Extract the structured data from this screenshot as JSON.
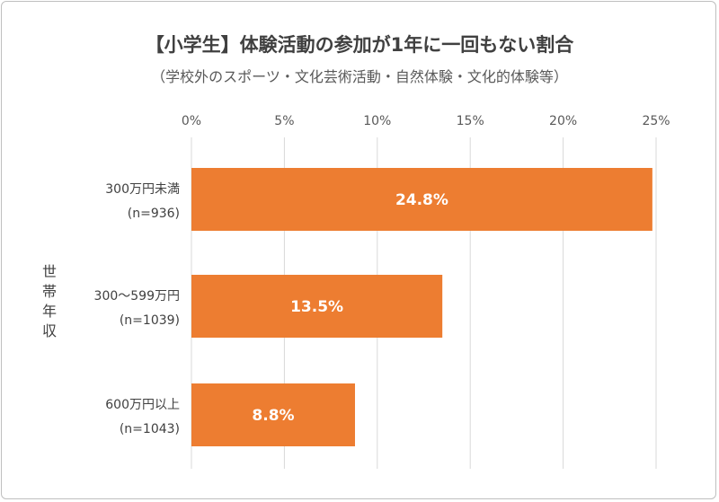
{
  "title": "【小学生】体験活動の参加が1年に一回もない割合",
  "subtitle": "（学校外のスポーツ・文化芸術活動・自然体験・文化的体験等）",
  "colors": {
    "bar": "#ED7D31",
    "grid": "#d9d9d9"
  },
  "chart_data": {
    "type": "bar",
    "orientation": "horizontal",
    "title": "【小学生】体験活動の参加が1年に一回もない割合",
    "subtitle": "（学校外のスポーツ・文化芸術活動・自然体験・文化的体験等）",
    "ylabel": "世帯年収",
    "xlabel": "",
    "xlim": [
      0,
      25
    ],
    "xticks": [
      "0%",
      "5%",
      "10%",
      "15%",
      "20%",
      "25%"
    ],
    "xtick_values": [
      0,
      5,
      10,
      15,
      20,
      25
    ],
    "axis_position": "top",
    "grid": true,
    "categories": [
      {
        "line1": "300万円未満",
        "line2": "(n=936)"
      },
      {
        "line1": "300〜599万円",
        "line2": "(n=1039)"
      },
      {
        "line1": "600万円以上",
        "line2": "(n=1043)"
      }
    ],
    "values": [
      24.8,
      13.5,
      8.8
    ],
    "data_labels": [
      "24.8%",
      "13.5%",
      "8.8%"
    ]
  }
}
